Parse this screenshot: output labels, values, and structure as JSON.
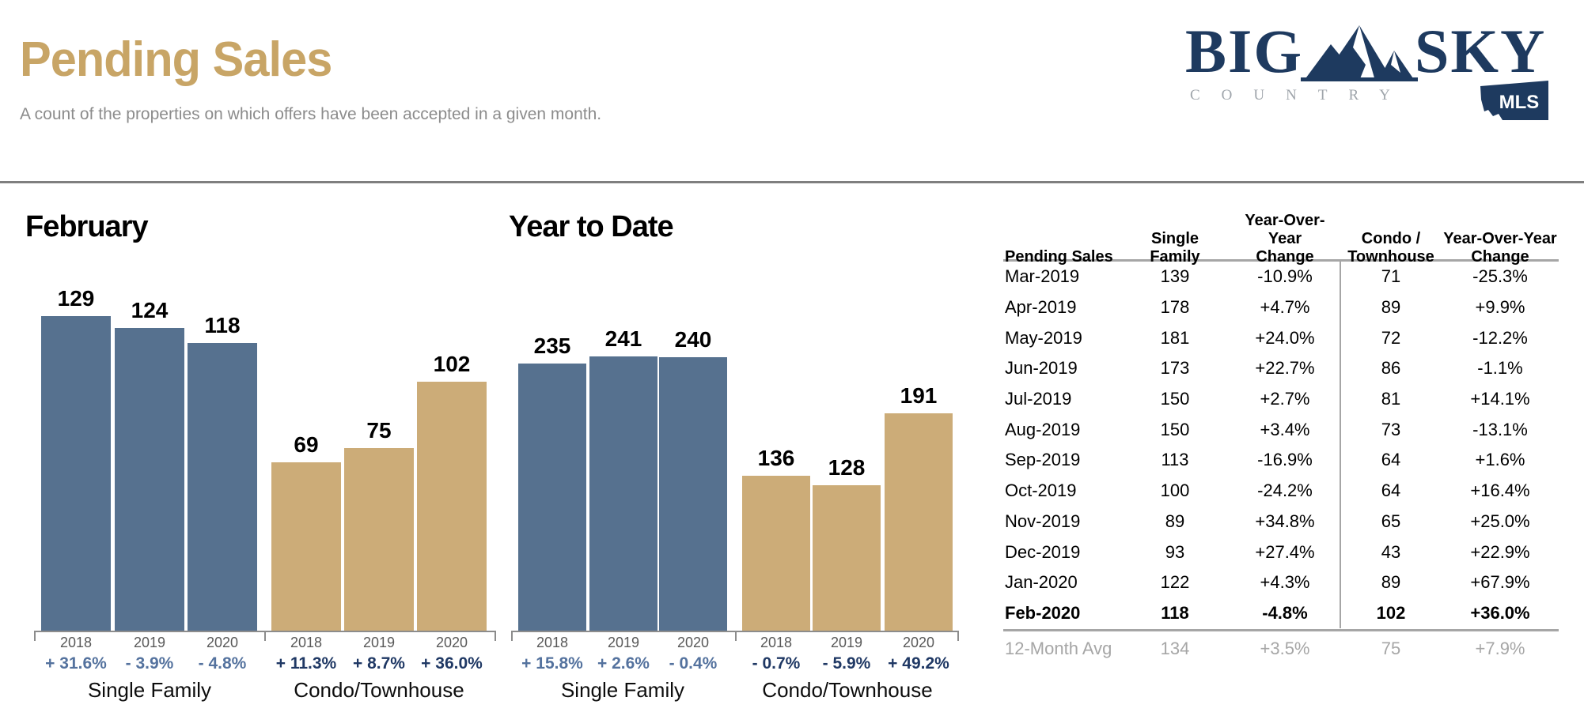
{
  "header": {
    "title": "Pending Sales",
    "subtitle": "A count of the properties on which offers have been accepted in a given month.",
    "logo": {
      "word_left": "BIG",
      "word_right": "SKY",
      "subtext": "COUNTRY",
      "badge": "MLS",
      "navy": "#1E3A5F",
      "gray": "#9FA5AB"
    }
  },
  "colors": {
    "title_gold": "#C8A566",
    "subtitle_gray": "#8C8C8C",
    "divider_gray": "#7F7F7F",
    "bar_blue": "#56718F",
    "bar_tan": "#CCAC78",
    "pct_steel_blue": "#54729E",
    "pct_navy": "#1F3864",
    "year_gray": "#595959",
    "table_line_gray": "#A6A6A6"
  },
  "chart_data": [
    {
      "type": "bar",
      "title": "February",
      "legend_position": "none",
      "grid": false,
      "groups": [
        {
          "label": "Single Family",
          "bar_color": "#56718F",
          "pct_color": "#54729E",
          "bars": [
            {
              "year": "2018",
              "value": 129,
              "change": "+ 31.6%"
            },
            {
              "year": "2019",
              "value": 124,
              "change": "- 3.9%"
            },
            {
              "year": "2020",
              "value": 118,
              "change": "- 4.8%"
            }
          ]
        },
        {
          "label": "Condo/Townhouse",
          "bar_color": "#CCAC78",
          "pct_color": "#1F3864",
          "bars": [
            {
              "year": "2018",
              "value": 69,
              "change": "+ 11.3%"
            },
            {
              "year": "2019",
              "value": 75,
              "change": "+ 8.7%"
            },
            {
              "year": "2020",
              "value": 102,
              "change": "+ 36.0%"
            }
          ]
        }
      ]
    },
    {
      "type": "bar",
      "title": "Year to Date",
      "legend_position": "none",
      "grid": false,
      "groups": [
        {
          "label": "Single Family",
          "bar_color": "#56718F",
          "pct_color": "#54729E",
          "bars": [
            {
              "year": "2018",
              "value": 235,
              "change": "+ 15.8%"
            },
            {
              "year": "2019",
              "value": 241,
              "change": "+ 2.6%"
            },
            {
              "year": "2020",
              "value": 240,
              "change": "- 0.4%"
            }
          ]
        },
        {
          "label": "Condo/Townhouse",
          "bar_color": "#CCAC78",
          "pct_color": "#1F3864",
          "bars": [
            {
              "year": "2018",
              "value": 136,
              "change": "- 0.7%"
            },
            {
              "year": "2019",
              "value": 128,
              "change": "- 5.9%"
            },
            {
              "year": "2020",
              "value": 191,
              "change": "+ 49.2%"
            }
          ]
        }
      ]
    }
  ],
  "table": {
    "col_headers": [
      "Pending Sales",
      "Single\nFamily",
      "Year-Over-Year\nChange",
      "Condo /\nTownhouse",
      "Year-Over-Year\nChange"
    ],
    "rows": [
      {
        "month": "Mar-2019",
        "sf": "139",
        "sf_chg": "-10.9%",
        "condo": "71",
        "condo_chg": "-25.3%",
        "bold": false
      },
      {
        "month": "Apr-2019",
        "sf": "178",
        "sf_chg": "+4.7%",
        "condo": "89",
        "condo_chg": "+9.9%",
        "bold": false
      },
      {
        "month": "May-2019",
        "sf": "181",
        "sf_chg": "+24.0%",
        "condo": "72",
        "condo_chg": "-12.2%",
        "bold": false
      },
      {
        "month": "Jun-2019",
        "sf": "173",
        "sf_chg": "+22.7%",
        "condo": "86",
        "condo_chg": "-1.1%",
        "bold": false
      },
      {
        "month": "Jul-2019",
        "sf": "150",
        "sf_chg": "+2.7%",
        "condo": "81",
        "condo_chg": "+14.1%",
        "bold": false
      },
      {
        "month": "Aug-2019",
        "sf": "150",
        "sf_chg": "+3.4%",
        "condo": "73",
        "condo_chg": "-13.1%",
        "bold": false
      },
      {
        "month": "Sep-2019",
        "sf": "113",
        "sf_chg": "-16.9%",
        "condo": "64",
        "condo_chg": "+1.6%",
        "bold": false
      },
      {
        "month": "Oct-2019",
        "sf": "100",
        "sf_chg": "-24.2%",
        "condo": "64",
        "condo_chg": "+16.4%",
        "bold": false
      },
      {
        "month": "Nov-2019",
        "sf": "89",
        "sf_chg": "+34.8%",
        "condo": "65",
        "condo_chg": "+25.0%",
        "bold": false
      },
      {
        "month": "Dec-2019",
        "sf": "93",
        "sf_chg": "+27.4%",
        "condo": "43",
        "condo_chg": "+22.9%",
        "bold": false
      },
      {
        "month": "Jan-2020",
        "sf": "122",
        "sf_chg": "+4.3%",
        "condo": "89",
        "condo_chg": "+67.9%",
        "bold": false
      },
      {
        "month": "Feb-2020",
        "sf": "118",
        "sf_chg": "-4.8%",
        "condo": "102",
        "condo_chg": "+36.0%",
        "bold": true
      }
    ],
    "footer": {
      "month": "12-Month Avg",
      "sf": "134",
      "sf_chg": "+3.5%",
      "condo": "75",
      "condo_chg": "+7.9%"
    }
  }
}
